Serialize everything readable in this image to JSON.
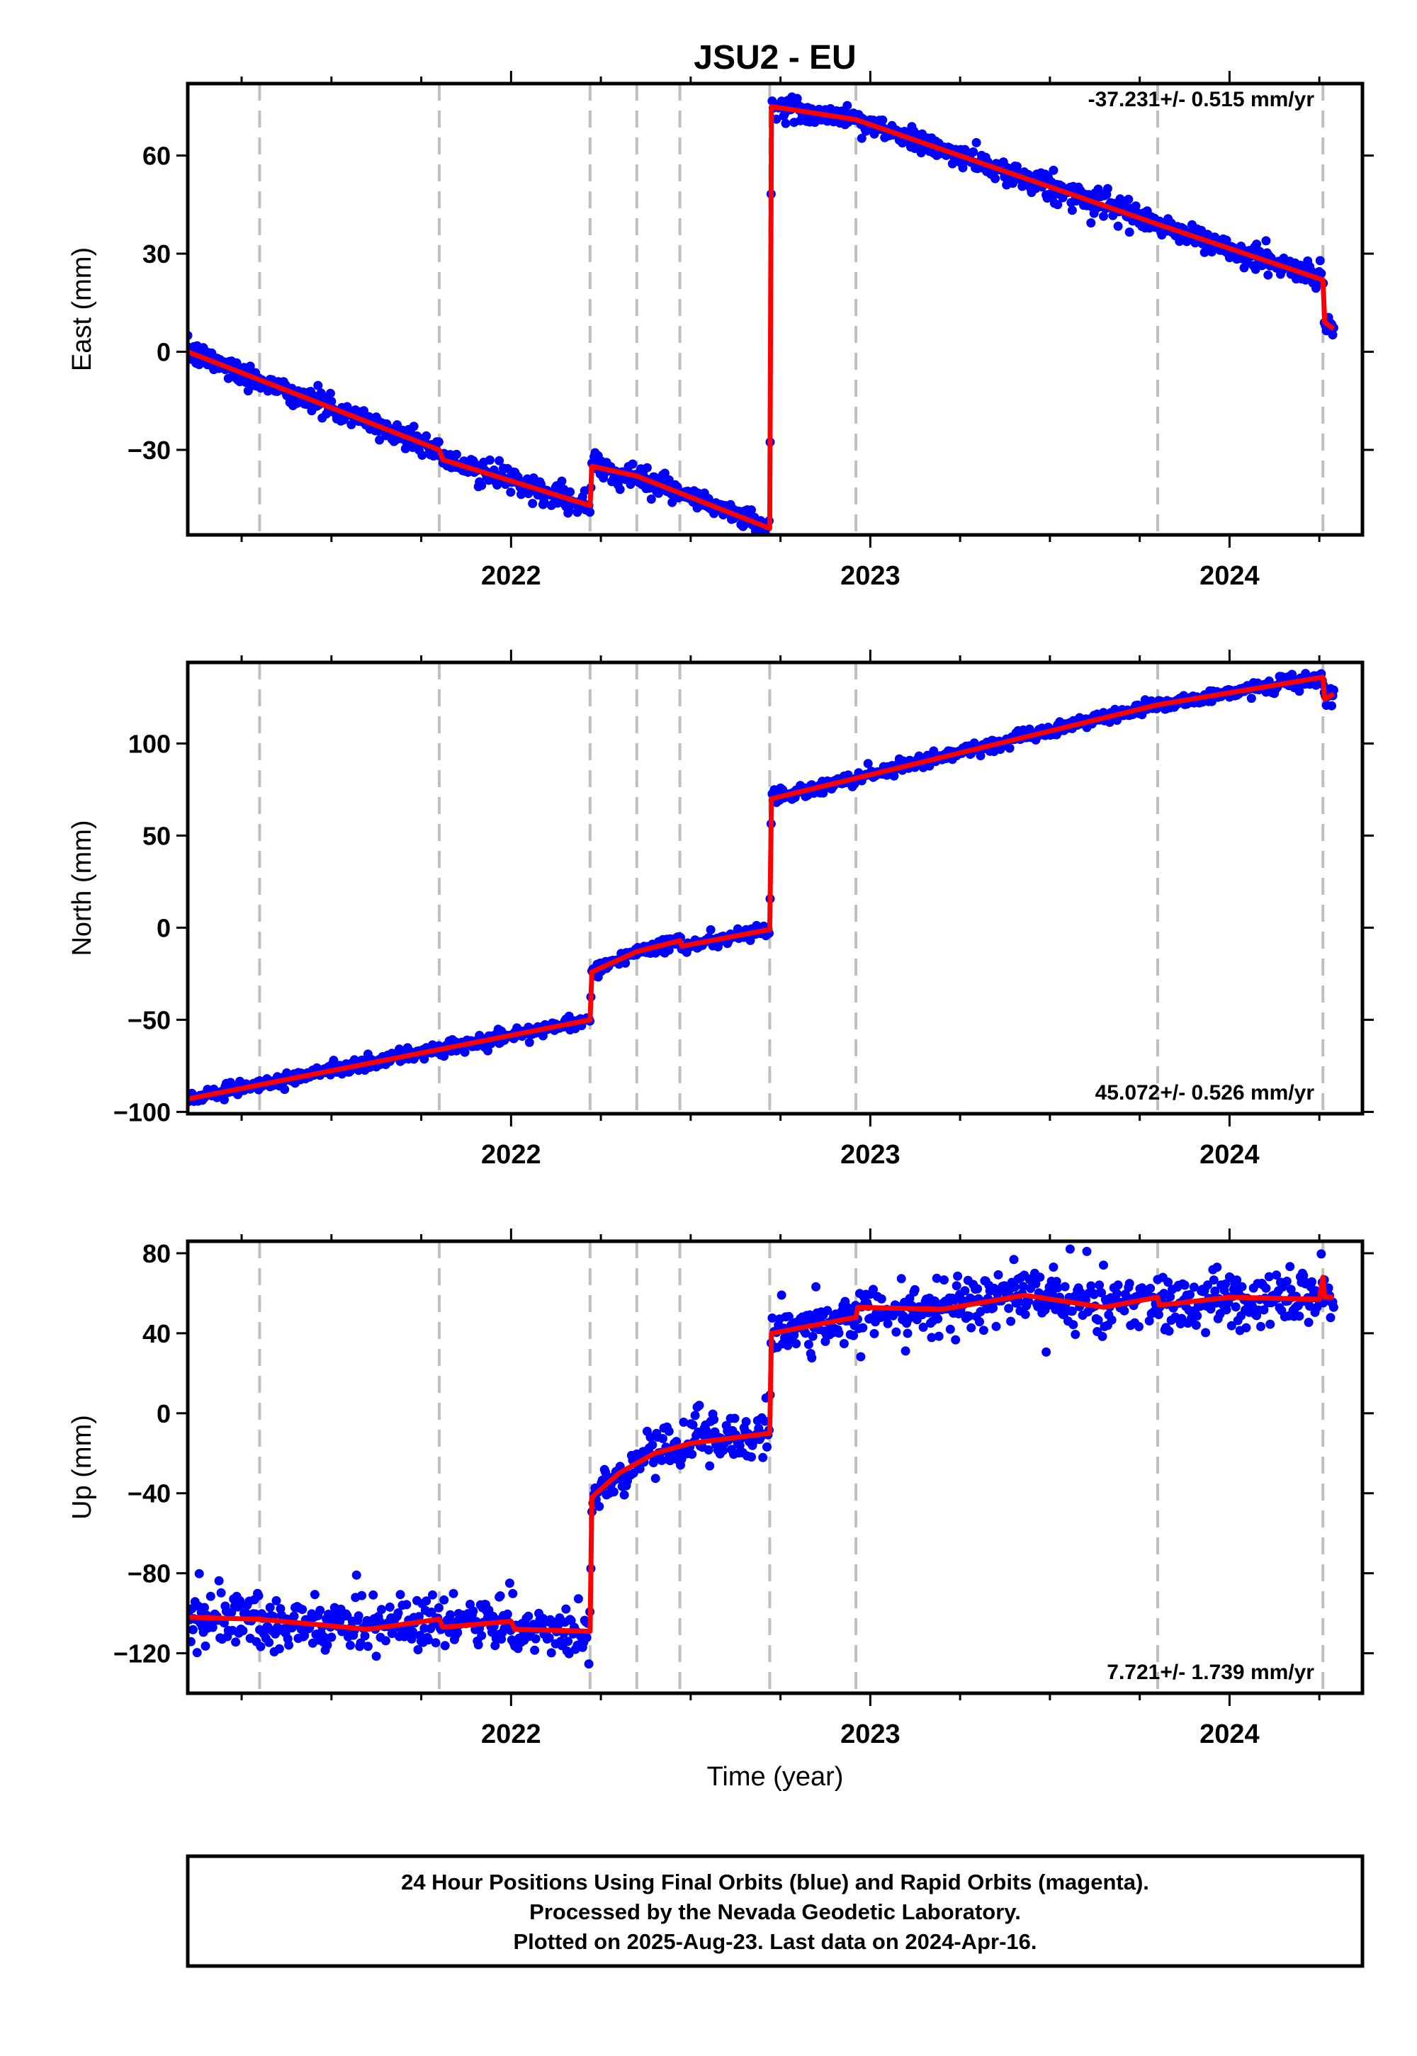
{
  "figure": {
    "title": "JSU2 - EU",
    "footer_lines": [
      "24 Hour Positions Using Final Orbits (blue) and Rapid Orbits (magenta).",
      "Processed by the Nevada Geodetic Laboratory.",
      "Plotted on 2025-Aug-23. Last data on 2024-Apr-16."
    ],
    "colors": {
      "final_orbits": "#0000ff",
      "rapid_orbits": "#ff00ff",
      "model": "#ff0000",
      "event_lines": "#bfbfbf"
    }
  },
  "chart_data": [
    {
      "type": "scatter",
      "component": "east",
      "ylabel": "East (mm)",
      "xlabel": "",
      "xlim": [
        2021.1,
        2024.37
      ],
      "ylim": [
        -56,
        82
      ],
      "yticks": [
        -30,
        0,
        30,
        60
      ],
      "xticks": [
        2022,
        2023,
        2024
      ],
      "rate_label": "-37.231+/- 0.515 mm/yr",
      "events": [
        2021.3,
        2021.8,
        2022.22,
        2022.35,
        2022.47,
        2022.72,
        2022.96,
        2023.8,
        2024.26
      ],
      "model": [
        {
          "x": 2021.1,
          "y": 0
        },
        {
          "x": 2021.8,
          "y": -30
        },
        {
          "x": 2021.81,
          "y": -33
        },
        {
          "x": 2022.22,
          "y": -47
        },
        {
          "x": 2022.225,
          "y": -35
        },
        {
          "x": 2022.35,
          "y": -38
        },
        {
          "x": 2022.72,
          "y": -54
        },
        {
          "x": 2022.725,
          "y": 75
        },
        {
          "x": 2022.96,
          "y": 71
        },
        {
          "x": 2023.8,
          "y": 39
        },
        {
          "x": 2024.26,
          "y": 22
        },
        {
          "x": 2024.265,
          "y": 9
        },
        {
          "x": 2024.29,
          "y": 7
        }
      ],
      "noise": 1.8
    },
    {
      "type": "scatter",
      "component": "north",
      "ylabel": "North (mm)",
      "xlabel": "",
      "xlim": [
        2021.1,
        2024.37
      ],
      "ylim": [
        -101,
        144
      ],
      "yticks": [
        -100,
        -50,
        0,
        50,
        100
      ],
      "xticks": [
        2022,
        2023,
        2024
      ],
      "rate_label": "45.072+/- 0.526 mm/yr",
      "events": [
        2021.3,
        2021.8,
        2022.22,
        2022.35,
        2022.47,
        2022.72,
        2022.96,
        2023.8,
        2024.26
      ],
      "model": [
        {
          "x": 2021.1,
          "y": -93
        },
        {
          "x": 2022.22,
          "y": -50
        },
        {
          "x": 2022.225,
          "y": -24
        },
        {
          "x": 2022.35,
          "y": -13
        },
        {
          "x": 2022.47,
          "y": -7
        },
        {
          "x": 2022.475,
          "y": -10
        },
        {
          "x": 2022.72,
          "y": -1
        },
        {
          "x": 2022.725,
          "y": 70
        },
        {
          "x": 2023.8,
          "y": 121
        },
        {
          "x": 2024.26,
          "y": 136
        },
        {
          "x": 2024.265,
          "y": 124
        },
        {
          "x": 2024.29,
          "y": 127
        }
      ],
      "noise": 1.8
    },
    {
      "type": "scatter",
      "component": "up",
      "ylabel": "Up (mm)",
      "xlabel": "Time (year)",
      "xlim": [
        2021.1,
        2024.37
      ],
      "ylim": [
        -140,
        86
      ],
      "yticks": [
        -120,
        -80,
        -40,
        0,
        40,
        80
      ],
      "xticks": [
        2022,
        2023,
        2024
      ],
      "rate_label": "7.721+/- 1.739 mm/yr",
      "events": [
        2021.3,
        2021.8,
        2022.22,
        2022.35,
        2022.47,
        2022.72,
        2022.96,
        2023.8,
        2024.26
      ],
      "model": [
        {
          "x": 2021.1,
          "y": -102
        },
        {
          "x": 2021.3,
          "y": -103
        },
        {
          "x": 2021.6,
          "y": -108
        },
        {
          "x": 2021.8,
          "y": -103
        },
        {
          "x": 2021.81,
          "y": -107
        },
        {
          "x": 2022.0,
          "y": -104
        },
        {
          "x": 2022.01,
          "y": -108
        },
        {
          "x": 2022.22,
          "y": -109
        },
        {
          "x": 2022.225,
          "y": -42
        },
        {
          "x": 2022.3,
          "y": -30
        },
        {
          "x": 2022.4,
          "y": -20
        },
        {
          "x": 2022.5,
          "y": -15
        },
        {
          "x": 2022.72,
          "y": -10
        },
        {
          "x": 2022.725,
          "y": 40
        },
        {
          "x": 2022.96,
          "y": 48
        },
        {
          "x": 2022.965,
          "y": 53
        },
        {
          "x": 2023.2,
          "y": 52
        },
        {
          "x": 2023.43,
          "y": 59
        },
        {
          "x": 2023.65,
          "y": 53
        },
        {
          "x": 2023.8,
          "y": 58
        },
        {
          "x": 2023.805,
          "y": 54
        },
        {
          "x": 2024.0,
          "y": 58
        },
        {
          "x": 2024.25,
          "y": 57
        },
        {
          "x": 2024.26,
          "y": 68
        },
        {
          "x": 2024.265,
          "y": 58
        },
        {
          "x": 2024.29,
          "y": 58
        }
      ],
      "noise": 6.5
    }
  ]
}
